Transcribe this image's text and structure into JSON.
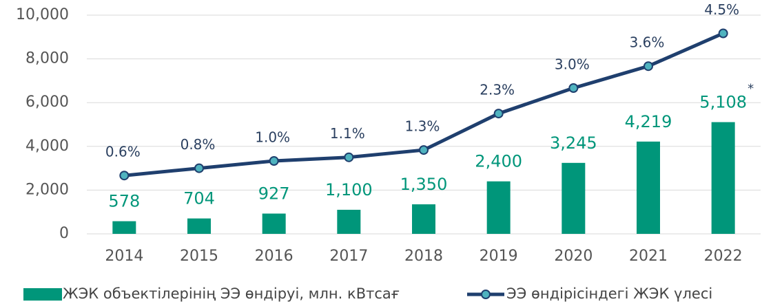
{
  "chart_data": {
    "type": "bar_line",
    "categories": [
      "2014",
      "2015",
      "2016",
      "2017",
      "2018",
      "2019",
      "2020",
      "2021",
      "2022"
    ],
    "series": [
      {
        "name": "ЖЭК объектілерінің ЭЭ өндіруі, млн. кВтсағ",
        "type": "bar",
        "color": "#00967a",
        "values": [
          578,
          704,
          927,
          1100,
          1350,
          2400,
          3245,
          4219,
          5108
        ],
        "value_labels": [
          "578",
          "704",
          "927",
          "1,100",
          "1,350",
          "2,400",
          "3,245",
          "4,219",
          "5,108"
        ]
      },
      {
        "name": "ЭЭ өндірісіндегі ЖЭК үлесі",
        "type": "line",
        "axis": "y2",
        "color": "#1f3f6e",
        "marker_color": "#4fb3bf",
        "values": [
          0.6,
          0.8,
          1.0,
          1.1,
          1.3,
          2.3,
          3.0,
          3.6,
          4.5
        ],
        "value_labels": [
          "0.6%",
          "0.8%",
          "1.0%",
          "1.1%",
          "1.3%",
          "2.3%",
          "3.0%",
          "3.6%",
          "4.5%"
        ]
      }
    ],
    "annotation": "*",
    "ylim": [
      0,
      10000
    ],
    "yticks": [
      0,
      {
        "value": 2000,
        "label": "2,000"
      },
      {
        "value": 4000,
        "label": "4,000"
      },
      {
        "value": 6000,
        "label": "6,000"
      },
      {
        "value": 8000,
        "label": "8,000"
      },
      {
        "value": 10000,
        "label": "10,000"
      }
    ],
    "y2lim": [
      -1,
      5
    ],
    "grid": true,
    "legend": "bottom"
  }
}
